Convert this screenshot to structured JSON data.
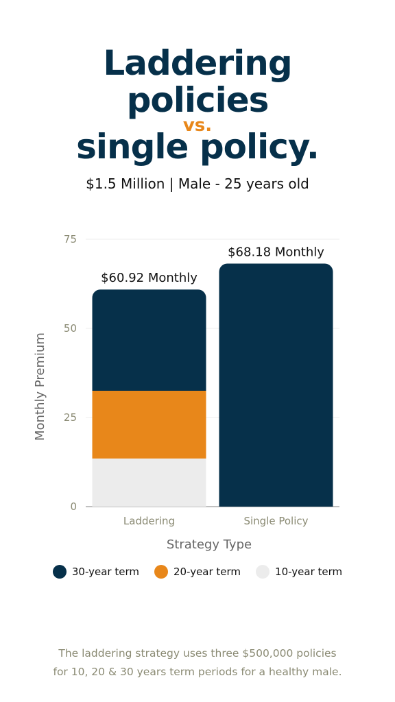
{
  "header": {
    "title_line1": "Laddering",
    "title_line2": "policies",
    "title_vs": "vs.",
    "title_line3": "single policy.",
    "subtitle": "$1.5 Million  |  Male - 25 years old"
  },
  "chart_data": {
    "type": "bar",
    "stacked": true,
    "categories": [
      "Laddering",
      "Single Policy"
    ],
    "series": [
      {
        "name": "10-year term",
        "values": [
          13.5,
          0
        ],
        "color": "#ececec"
      },
      {
        "name": "20-year term",
        "values": [
          19,
          0
        ],
        "color": "#e8871a"
      },
      {
        "name": "30-year term",
        "values": [
          28.42,
          68.18
        ],
        "color": "#06304a"
      }
    ],
    "totals_labels": [
      "$60.92 Monthly",
      "$68.18 Monthly"
    ],
    "xlabel": "Strategy Type",
    "ylabel": "Monthly Premium",
    "ylim": [
      0,
      75
    ],
    "yticks": [
      0,
      25,
      50,
      75
    ],
    "grid": true,
    "legend_position": "bottom"
  },
  "legend": {
    "items": [
      {
        "label": "30-year term",
        "color": "#06304a"
      },
      {
        "label": "20-year term",
        "color": "#e8871a"
      },
      {
        "label": "10-year term",
        "color": "#ececec"
      }
    ]
  },
  "footnote": {
    "line1": "The laddering strategy uses three $500,000 policies",
    "line2": "for 10, 20 & 30 years term periods for a healthy male."
  }
}
